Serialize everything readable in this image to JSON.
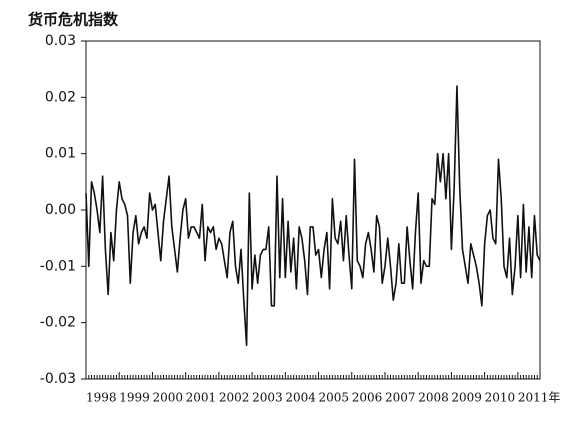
{
  "chart_data": {
    "type": "line",
    "title": "货币危机指数",
    "categories": [
      "1998",
      null,
      null,
      null,
      null,
      null,
      null,
      null,
      null,
      null,
      null,
      null,
      "1999",
      null,
      null,
      null,
      null,
      null,
      null,
      null,
      null,
      null,
      null,
      null,
      "2000",
      null,
      null,
      null,
      null,
      null,
      null,
      null,
      null,
      null,
      null,
      null,
      "2001",
      null,
      null,
      null,
      null,
      null,
      null,
      null,
      null,
      null,
      null,
      null,
      "2002",
      null,
      null,
      null,
      null,
      null,
      null,
      null,
      null,
      null,
      null,
      null,
      "2003",
      null,
      null,
      null,
      null,
      null,
      null,
      null,
      null,
      null,
      null,
      null,
      "2004",
      null,
      null,
      null,
      null,
      null,
      null,
      null,
      null,
      null,
      null,
      null,
      "2005",
      null,
      null,
      null,
      null,
      null,
      null,
      null,
      null,
      null,
      null,
      null,
      "2006",
      null,
      null,
      null,
      null,
      null,
      null,
      null,
      null,
      null,
      null,
      null,
      "2007",
      null,
      null,
      null,
      null,
      null,
      null,
      null,
      null,
      null,
      null,
      null,
      "2008",
      null,
      null,
      null,
      null,
      null,
      null,
      null,
      null,
      null,
      null,
      null,
      "2009",
      null,
      null,
      null,
      null,
      null,
      null,
      null,
      null,
      null,
      null,
      null,
      "2010",
      null,
      null,
      null,
      null,
      null,
      null,
      null,
      null,
      null,
      null,
      null,
      "2011年",
      null,
      null,
      null,
      null,
      null,
      null,
      null,
      null
    ],
    "values": [
      0.003,
      -0.01,
      0.005,
      0.003,
      0.0,
      -0.004,
      0.006,
      -0.007,
      -0.015,
      -0.004,
      -0.009,
      0.0,
      0.005,
      0.002,
      0.001,
      -0.001,
      -0.013,
      -0.004,
      -0.001,
      -0.006,
      -0.004,
      -0.003,
      -0.005,
      0.003,
      0.0,
      0.001,
      -0.004,
      -0.009,
      -0.002,
      0.002,
      0.006,
      -0.003,
      -0.007,
      -0.011,
      -0.005,
      0.0,
      0.002,
      -0.005,
      -0.003,
      -0.003,
      -0.004,
      -0.005,
      0.001,
      -0.009,
      -0.003,
      -0.004,
      -0.003,
      -0.007,
      -0.005,
      -0.006,
      -0.009,
      -0.012,
      -0.004,
      -0.002,
      -0.01,
      -0.013,
      -0.007,
      -0.016,
      -0.024,
      0.003,
      -0.014,
      -0.008,
      -0.013,
      -0.008,
      -0.007,
      -0.007,
      -0.003,
      -0.017,
      -0.017,
      0.006,
      -0.012,
      0.002,
      -0.012,
      -0.002,
      -0.011,
      -0.005,
      -0.014,
      -0.003,
      -0.005,
      -0.009,
      -0.015,
      -0.003,
      -0.003,
      -0.008,
      -0.007,
      -0.012,
      -0.007,
      -0.004,
      -0.014,
      0.002,
      -0.005,
      -0.006,
      -0.002,
      -0.009,
      -0.001,
      -0.008,
      -0.014,
      0.009,
      -0.009,
      -0.01,
      -0.012,
      -0.006,
      -0.004,
      -0.007,
      -0.011,
      -0.001,
      -0.003,
      -0.013,
      -0.01,
      -0.005,
      -0.01,
      -0.016,
      -0.013,
      -0.006,
      -0.013,
      -0.013,
      -0.003,
      -0.009,
      -0.014,
      -0.004,
      0.003,
      -0.013,
      -0.009,
      -0.01,
      -0.01,
      0.002,
      0.001,
      0.01,
      0.005,
      0.01,
      0.002,
      0.01,
      -0.007,
      0.004,
      0.022,
      0.004,
      -0.007,
      -0.01,
      -0.013,
      -0.006,
      -0.008,
      -0.01,
      -0.013,
      -0.017,
      -0.006,
      -0.001,
      0.0,
      -0.005,
      -0.006,
      0.009,
      0.002,
      -0.01,
      -0.012,
      -0.005,
      -0.015,
      -0.01,
      -0.001,
      -0.012,
      0.001,
      -0.011,
      -0.003,
      -0.012,
      -0.001,
      -0.008,
      -0.009
    ],
    "color": "#111111",
    "ylim": [
      -0.03,
      0.03
    ],
    "yticks": [
      -0.03,
      -0.02,
      -0.01,
      {
        "value": 0,
        "label": "0.00"
      },
      0.01,
      0.02,
      0.03
    ]
  }
}
